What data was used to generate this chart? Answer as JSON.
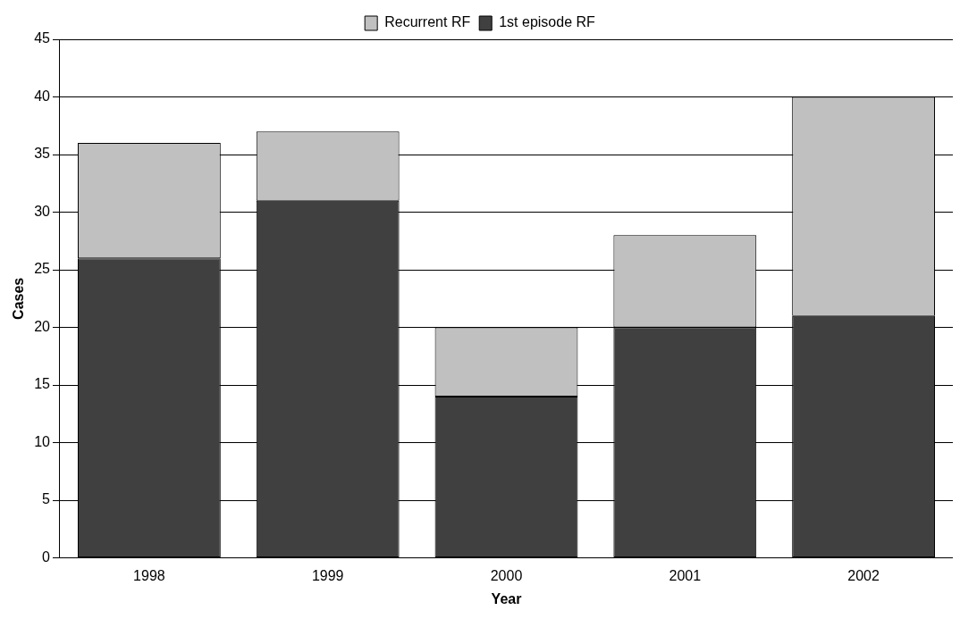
{
  "chart_data": {
    "type": "bar",
    "stacked": true,
    "xlabel": "Year",
    "ylabel": "Cases",
    "categories": [
      "1998",
      "1999",
      "2000",
      "2001",
      "2002"
    ],
    "series": [
      {
        "name": "1st episode RF",
        "color": "#404040",
        "values": [
          26,
          31,
          14,
          20,
          21
        ]
      },
      {
        "name": "Recurrent RF",
        "color": "#c0c0c0",
        "values": [
          10,
          6,
          6,
          8,
          19
        ]
      }
    ],
    "ylim": [
      0,
      45
    ],
    "yticks": [
      0,
      5,
      10,
      15,
      20,
      25,
      30,
      35,
      40,
      45
    ],
    "grid": "y",
    "legend": "top"
  }
}
